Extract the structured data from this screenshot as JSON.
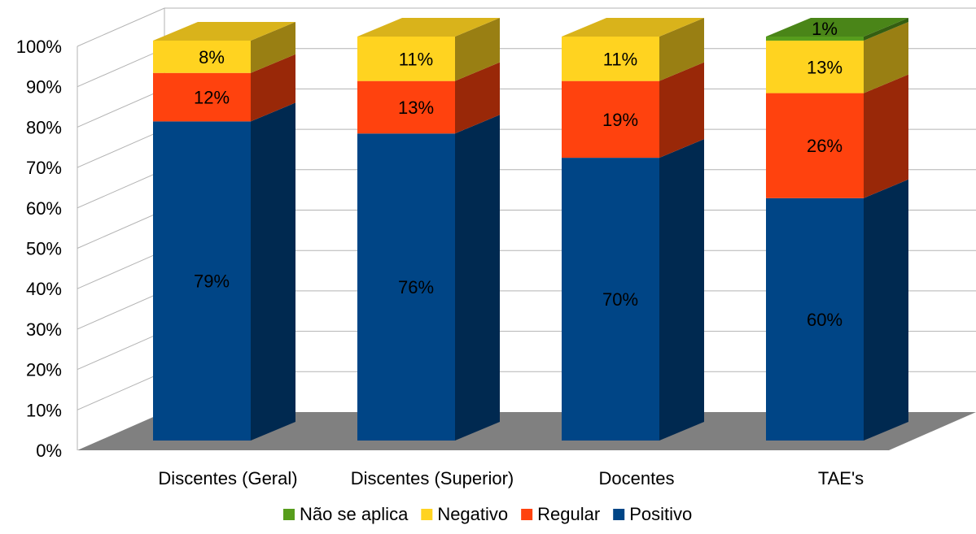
{
  "chart_data": {
    "type": "bar",
    "stacked": true,
    "three_d": true,
    "title": "",
    "xlabel": "",
    "ylabel": "",
    "ylim": [
      0,
      100
    ],
    "y_ticks": [
      "0%",
      "10%",
      "20%",
      "30%",
      "40%",
      "50%",
      "60%",
      "70%",
      "80%",
      "90%",
      "100%"
    ],
    "categories": [
      "Discentes (Geral)",
      "Discentes (Superior)",
      "Docentes",
      "TAE's"
    ],
    "series": [
      {
        "name": "Positivo",
        "color": "#004586",
        "values": [
          79,
          76,
          70,
          60
        ],
        "labels": [
          "79%",
          "76%",
          "70%",
          "60%"
        ]
      },
      {
        "name": "Regular",
        "color": "#ff420e",
        "values": [
          12,
          13,
          19,
          26
        ],
        "labels": [
          "12%",
          "13%",
          "19%",
          "26%"
        ]
      },
      {
        "name": "Negativo",
        "color": "#ffd320",
        "values": [
          8,
          11,
          11,
          13
        ],
        "labels": [
          "8%",
          "11%",
          "11%",
          "13%"
        ]
      },
      {
        "name": "Não se aplica",
        "color": "#579d1c",
        "values": [
          0,
          0,
          0,
          1
        ],
        "labels": [
          "",
          "",
          "",
          "1%"
        ]
      }
    ],
    "legend": {
      "position": "bottom",
      "order": [
        "Não se aplica",
        "Negativo",
        "Regular",
        "Positivo"
      ]
    },
    "grid": true
  }
}
